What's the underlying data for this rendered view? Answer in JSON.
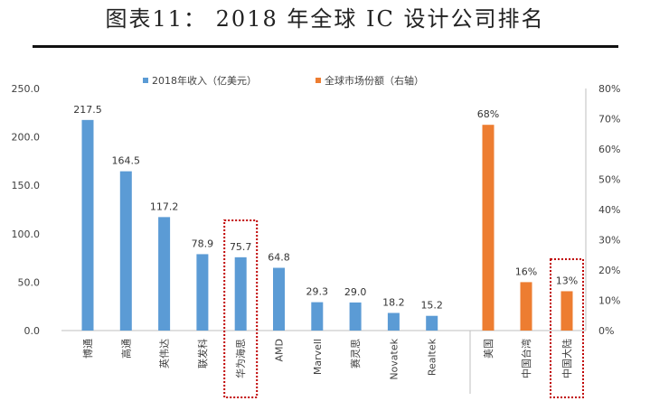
{
  "figure_title": "图表11： 2018 年全球 IC 设计公司排名",
  "chart_data": {
    "type": "bar",
    "legend_position": "top",
    "grid": false,
    "left_axis": {
      "ylim": [
        0,
        250
      ],
      "ticks": [
        "0.0",
        "50.0",
        "100.0",
        "150.0",
        "200.0",
        "250.0"
      ]
    },
    "right_axis": {
      "ylim": [
        0,
        80
      ],
      "ticks": [
        "0%",
        "10%",
        "20%",
        "30%",
        "40%",
        "50%",
        "60%",
        "70%",
        "80%"
      ]
    },
    "series": [
      {
        "name": "2018年收入（亿美元）",
        "color": "#5b9bd5",
        "axis": "left",
        "categories": [
          "博通",
          "高通",
          "英伟达",
          "联发科",
          "华为海思",
          "AMD",
          "Marvell",
          "赛灵思",
          "Novatek",
          "Realtek"
        ],
        "values": [
          217.5,
          164.5,
          117.2,
          78.9,
          75.7,
          64.8,
          29.3,
          29.0,
          18.2,
          15.2
        ],
        "labels": [
          "217.5",
          "164.5",
          "117.2",
          "78.9",
          "75.7",
          "64.8",
          "29.3",
          "29.0",
          "18.2",
          "15.2"
        ]
      },
      {
        "name": "全球市场份额（右轴）",
        "color": "#ed7d31",
        "axis": "right",
        "categories": [
          "美国",
          "中国台湾",
          "中国大陆"
        ],
        "values": [
          68,
          16,
          13
        ],
        "labels": [
          "68%",
          "16%",
          "13%"
        ]
      }
    ],
    "highlighted_categories": [
      "华为海思",
      "中国大陆"
    ],
    "highlight_color": "#c00000"
  }
}
